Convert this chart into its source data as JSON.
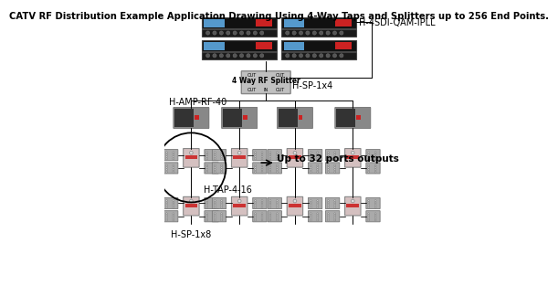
{
  "title": "CATV RF Distribution Example Application Drawing Using 4-Way Taps and Splitters up to 256 End Points.",
  "bg_color": "#ffffff",
  "label_h4sdi": "H-4SDI-QAM-IPLL",
  "label_hamp": "H-AMP-RF-40",
  "label_hsp1x4": "H-SP-1x4",
  "label_htap": "H-TAP-4-16",
  "label_hsp1x8": "H-SP-1x8",
  "label_ports": "Up to 32 ports outputs",
  "splitter_label": "4 Way RF Splitter",
  "rack_tall_color": "#111111",
  "rack_thin_color": "#1a1a1a",
  "display_color": "#5599cc",
  "splitter_color": "#c0c0c0",
  "amp_color": "#888888",
  "amp_dark_color": "#333333",
  "tap_color": "#d4c0c0",
  "tap_red_color": "#cc3333",
  "port_strip_color": "#aaaaaa",
  "port_strip_light": "#cccccc",
  "line_color": "#000000",
  "text_color": "#000000",
  "title_fontsize": 7.2,
  "label_fontsize": 7.0
}
